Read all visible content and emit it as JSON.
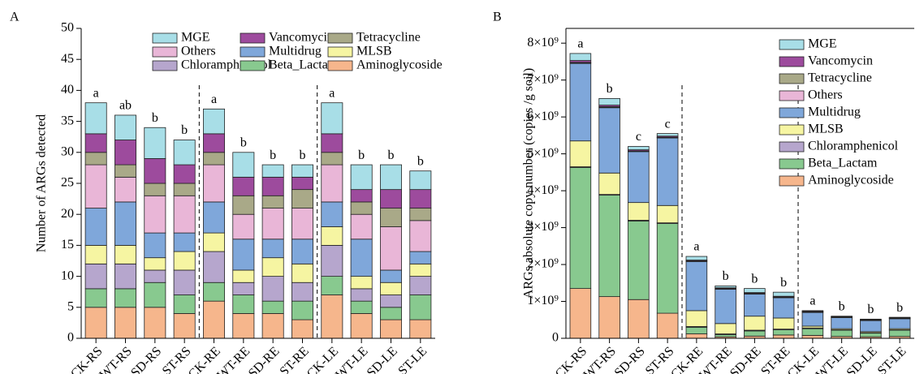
{
  "chart_data": [
    {
      "type": "bar",
      "stacked": true,
      "panel_label": "A",
      "ylabel": "Number of ARGs detected",
      "categories": [
        "CK-RS",
        "WT-RS",
        "SD-RS",
        "ST-RS",
        "CK-RE",
        "WT-RE",
        "SD-RE",
        "ST-RE",
        "CK-LE",
        "WT-LE",
        "SD-LE",
        "ST-LE"
      ],
      "annotations": [
        "a",
        "ab",
        "b",
        "b",
        "a",
        "b",
        "b",
        "b",
        "a",
        "b",
        "b",
        "b"
      ],
      "dividers_after": [
        3,
        7
      ],
      "ylim": [
        0,
        50
      ],
      "yticks": [
        0,
        5,
        10,
        15,
        20,
        25,
        30,
        35,
        40,
        45,
        50
      ],
      "legend": "top-right",
      "legend_columns": 3,
      "series": [
        {
          "name": "Aminoglycoside",
          "color": "#f6b68c",
          "values": [
            5,
            5,
            5,
            4,
            6,
            4,
            4,
            3,
            7,
            4,
            3,
            3
          ]
        },
        {
          "name": "Beta_Lactam",
          "color": "#88c98f",
          "values": [
            3,
            3,
            4,
            3,
            3,
            3,
            2,
            3,
            3,
            2,
            2,
            4
          ]
        },
        {
          "name": "Chloramphenicol",
          "color": "#b6a6cd",
          "values": [
            4,
            4,
            2,
            4,
            5,
            2,
            4,
            3,
            5,
            2,
            2,
            3
          ]
        },
        {
          "name": "MLSB",
          "color": "#f6f5a2",
          "values": [
            3,
            3,
            2,
            3,
            3,
            2,
            3,
            3,
            3,
            2,
            2,
            2
          ]
        },
        {
          "name": "Multidrug",
          "color": "#7fa7da",
          "values": [
            6,
            7,
            4,
            3,
            5,
            5,
            3,
            4,
            4,
            6,
            2,
            2
          ]
        },
        {
          "name": "Others",
          "color": "#e9b6d7",
          "values": [
            7,
            4,
            6,
            6,
            6,
            4,
            5,
            5,
            6,
            4,
            7,
            5
          ]
        },
        {
          "name": "Tetracycline",
          "color": "#a9a988",
          "values": [
            2,
            2,
            2,
            2,
            2,
            3,
            2,
            3,
            2,
            2,
            3,
            2
          ]
        },
        {
          "name": "Vancomycin",
          "color": "#9d4b9d",
          "values": [
            3,
            4,
            4,
            3,
            3,
            3,
            3,
            2,
            3,
            2,
            3,
            3
          ]
        },
        {
          "name": "MGE",
          "color": "#a8dee7",
          "values": [
            5,
            4,
            5,
            4,
            4,
            4,
            2,
            2,
            5,
            4,
            4,
            3
          ]
        }
      ]
    },
    {
      "type": "bar",
      "stacked": true,
      "panel_label": "B",
      "ylabel": "ARGs absolute copy number (copies /g soil)",
      "categories": [
        "CK-RS",
        "WT-RS",
        "SD-RS",
        "ST-RS",
        "CK-RE",
        "WT-RE",
        "SD-RE",
        "ST-RE",
        "CK-LE",
        "WT-LE",
        "SD-LE",
        "ST-LE"
      ],
      "annotations": [
        "a",
        "b",
        "c",
        "c",
        "a",
        "b",
        "b",
        "b",
        "a",
        "b",
        "b",
        "b"
      ],
      "dividers_after": [
        3,
        7
      ],
      "ylim": [
        0,
        8400000000.0
      ],
      "yticks": [
        0,
        {
          "value": 1000000000.0,
          "label": "1×10⁹"
        },
        {
          "value": 2000000000.0,
          "label": "2×10⁹"
        },
        {
          "value": 3000000000.0,
          "label": "3×10⁹"
        },
        {
          "value": 4000000000.0,
          "label": "4×10⁹"
        },
        {
          "value": 5000000000.0,
          "label": "5×10⁹"
        },
        {
          "value": 6000000000.0,
          "label": "6×10⁹"
        },
        {
          "value": 7000000000.0,
          "label": "7×10⁹"
        },
        {
          "value": 8000000000.0,
          "label": "8×10⁹"
        }
      ],
      "legend": "top-right",
      "legend_columns": 1,
      "series": [
        {
          "name": "Aminoglycoside",
          "color": "#f6b68c",
          "values": [
            1350000000.0,
            1130000000.0,
            1050000000.0,
            680000000.0,
            120000000.0,
            40000000.0,
            60000000.0,
            90000000.0,
            80000000.0,
            50000000.0,
            40000000.0,
            50000000.0
          ]
        },
        {
          "name": "Beta_Lactam",
          "color": "#88c98f",
          "values": [
            3280000000.0,
            2750000000.0,
            2130000000.0,
            2430000000.0,
            180000000.0,
            60000000.0,
            140000000.0,
            140000000.0,
            180000000.0,
            170000000.0,
            100000000.0,
            170000000.0
          ]
        },
        {
          "name": "Chloramphenicol",
          "color": "#b6a6cd",
          "values": [
            20000000.0,
            20000000.0,
            20000000.0,
            20000000.0,
            20000000.0,
            20000000.0,
            20000000.0,
            20000000.0,
            20000000.0,
            10000000.0,
            10000000.0,
            10000000.0
          ]
        },
        {
          "name": "MLSB",
          "color": "#f6f5a2",
          "values": [
            700000000.0,
            580000000.0,
            480000000.0,
            470000000.0,
            430000000.0,
            280000000.0,
            380000000.0,
            300000000.0,
            50000000.0,
            30000000.0,
            30000000.0,
            30000000.0
          ]
        },
        {
          "name": "Multidrug",
          "color": "#7fa7da",
          "values": [
            2100000000.0,
            1770000000.0,
            1380000000.0,
            1830000000.0,
            1330000000.0,
            930000000.0,
            600000000.0,
            550000000.0,
            370000000.0,
            300000000.0,
            300000000.0,
            270000000.0
          ]
        },
        {
          "name": "Others",
          "color": "#e9b6d7",
          "values": [
            20000000.0,
            20000000.0,
            10000000.0,
            10000000.0,
            10000000.0,
            10000000.0,
            10000000.0,
            10000000.0,
            10000000.0,
            10000000.0,
            10000000.0,
            10000000.0
          ]
        },
        {
          "name": "Tetracycline",
          "color": "#a9a988",
          "values": [
            10000000.0,
            10000000.0,
            10000000.0,
            10000000.0,
            10000000.0,
            10000000.0,
            10000000.0,
            10000000.0,
            10000000.0,
            10000000.0,
            10000000.0,
            10000000.0
          ]
        },
        {
          "name": "Vancomycin",
          "color": "#9d4b9d",
          "values": [
            50000000.0,
            40000000.0,
            30000000.0,
            30000000.0,
            20000000.0,
            20000000.0,
            20000000.0,
            20000000.0,
            20000000.0,
            10000000.0,
            10000000.0,
            10000000.0
          ]
        },
        {
          "name": "MGE",
          "color": "#a8dee7",
          "values": [
            190000000.0,
            180000000.0,
            90000000.0,
            70000000.0,
            100000000.0,
            50000000.0,
            110000000.0,
            110000000.0,
            10000000.0,
            10000000.0,
            10000000.0,
            10000000.0
          ]
        }
      ]
    }
  ]
}
